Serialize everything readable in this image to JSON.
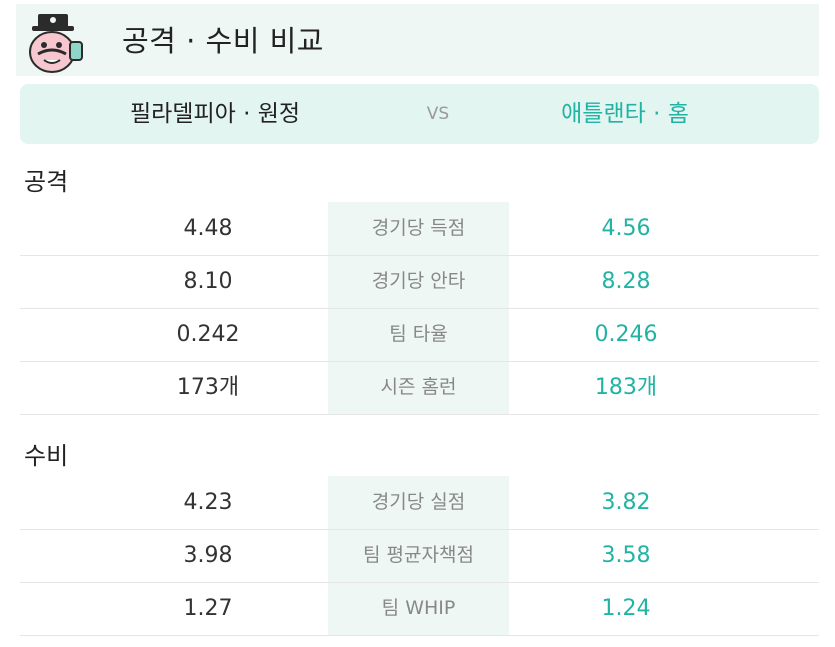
{
  "header": {
    "title": "공격 · 수비 비교",
    "mascot_icon": "mascot-top-hat-icon"
  },
  "teams": {
    "away": "필라델피아 · 원정",
    "vs": "VS",
    "home": "애틀랜타 · 홈"
  },
  "colors": {
    "accent": "#21b3a3",
    "band": "#eef7f4"
  },
  "sections": [
    {
      "title": "공격",
      "rows": [
        {
          "label": "경기당 득점",
          "away": "4.48",
          "home": "4.56"
        },
        {
          "label": "경기당 안타",
          "away": "8.10",
          "home": "8.28"
        },
        {
          "label": "팀 타율",
          "away": "0.242",
          "home": "0.246"
        },
        {
          "label": "시즌 홈런",
          "away": "173개",
          "home": "183개"
        }
      ]
    },
    {
      "title": "수비",
      "rows": [
        {
          "label": "경기당 실점",
          "away": "4.23",
          "home": "3.82"
        },
        {
          "label": "팀 평균자책점",
          "away": "3.98",
          "home": "3.58"
        },
        {
          "label": "팀 WHIP",
          "away": "1.27",
          "home": "1.24"
        }
      ]
    }
  ]
}
